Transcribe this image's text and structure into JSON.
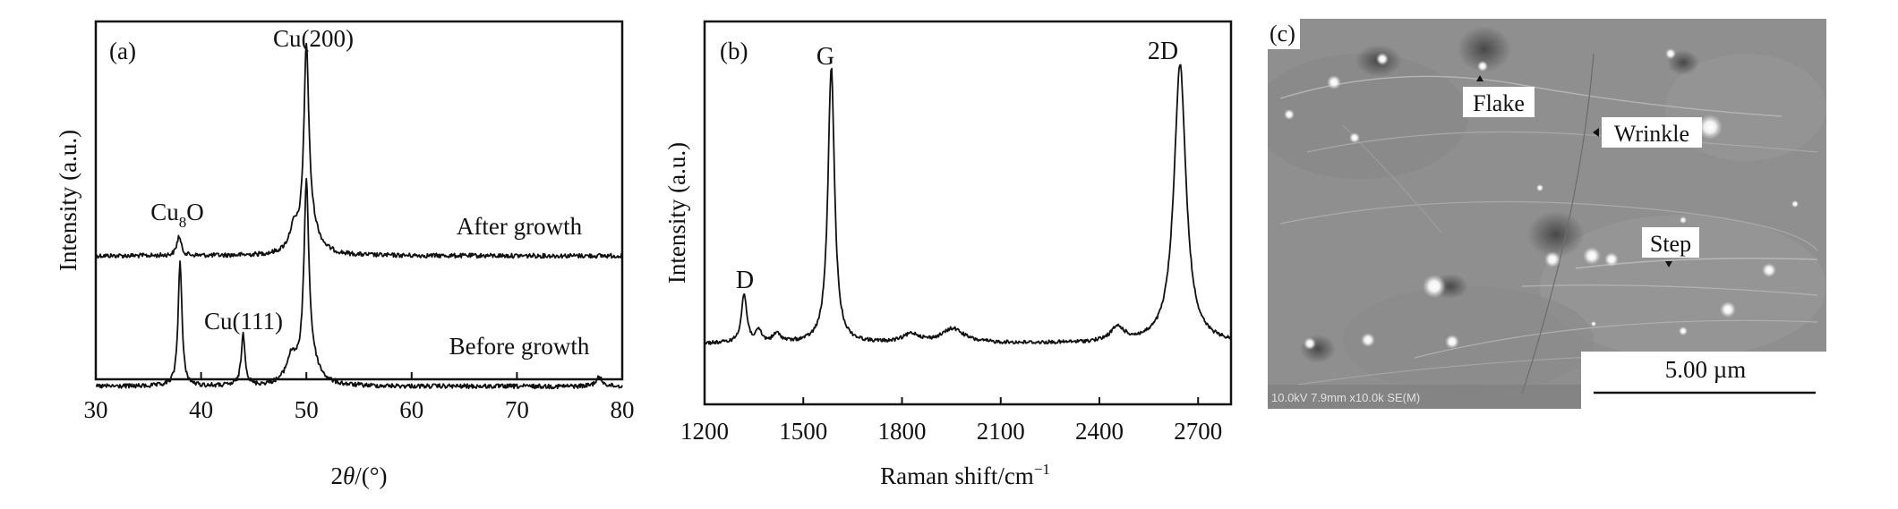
{
  "chart_data": [
    {
      "type": "line",
      "panel_label": "(a)",
      "xlabel": "2θ/(°)",
      "ylabel": "Intensity (a.u.)",
      "xlim": [
        30,
        80
      ],
      "xticks": [
        "30",
        "40",
        "50",
        "60",
        "70",
        "80"
      ],
      "y_tick_labels": false,
      "series": [
        {
          "name": "After growth",
          "peaks": [
            {
              "x": 37.9,
              "height": 0.09,
              "width": 0.25
            },
            {
              "x": 48.8,
              "height": 0.1,
              "width": 0.5
            },
            {
              "x": 50.0,
              "height": 0.88,
              "width": 0.28
            },
            {
              "x": 50.4,
              "height": 0.12,
              "width": 0.9
            }
          ]
        },
        {
          "name": "Before growth",
          "peaks": [
            {
              "x": 38.0,
              "height": 0.58,
              "width": 0.22
            },
            {
              "x": 44.0,
              "height": 0.24,
              "width": 0.22
            },
            {
              "x": 48.6,
              "height": 0.12,
              "width": 0.6
            },
            {
              "x": 50.0,
              "height": 0.86,
              "width": 0.28
            },
            {
              "x": 50.4,
              "height": 0.1,
              "width": 0.9
            },
            {
              "x": 77.8,
              "height": 0.04,
              "width": 0.4
            }
          ]
        }
      ],
      "annotations": {
        "cu200": "Cu(200)",
        "cu8o_base": "Cu",
        "cu8o_sub": "8",
        "cu8o_tail": "O",
        "cu111": "Cu(111)",
        "after_growth": "After growth",
        "before_growth": "Before growth"
      }
    },
    {
      "type": "line",
      "panel_label": "(b)",
      "xlabel": "Raman shift/cm",
      "xlabel_sup": "−1",
      "ylabel": "Intensity (a.u.)",
      "xlim": [
        1200,
        2800
      ],
      "xticks": [
        "1200",
        "1500",
        "1800",
        "2100",
        "2400",
        "2700"
      ],
      "y_tick_labels": false,
      "series": [
        {
          "name": "Raman spectrum",
          "peaks": [
            {
              "x": 1320,
              "height": 0.17,
              "width": 10
            },
            {
              "x": 1365,
              "height": 0.04,
              "width": 10
            },
            {
              "x": 1420,
              "height": 0.03,
              "width": 15
            },
            {
              "x": 1585,
              "height": 0.97,
              "width": 12
            },
            {
              "x": 1830,
              "height": 0.03,
              "width": 30
            },
            {
              "x": 1955,
              "height": 0.05,
              "width": 40
            },
            {
              "x": 2455,
              "height": 0.05,
              "width": 25
            },
            {
              "x": 2645,
              "height": 0.98,
              "width": 22
            }
          ]
        }
      ],
      "annotations": {
        "d": "D",
        "g": "G",
        "twod": "2D"
      }
    }
  ],
  "sem_panel": {
    "panel_label": "(c)",
    "labels": {
      "flake": "Flake",
      "wrinkle": "Wrinkle",
      "step": "Step"
    },
    "scale_bar": "5.00 µm",
    "info_bar": "10.0kV 7.9mm x10.0k SE(M)"
  }
}
